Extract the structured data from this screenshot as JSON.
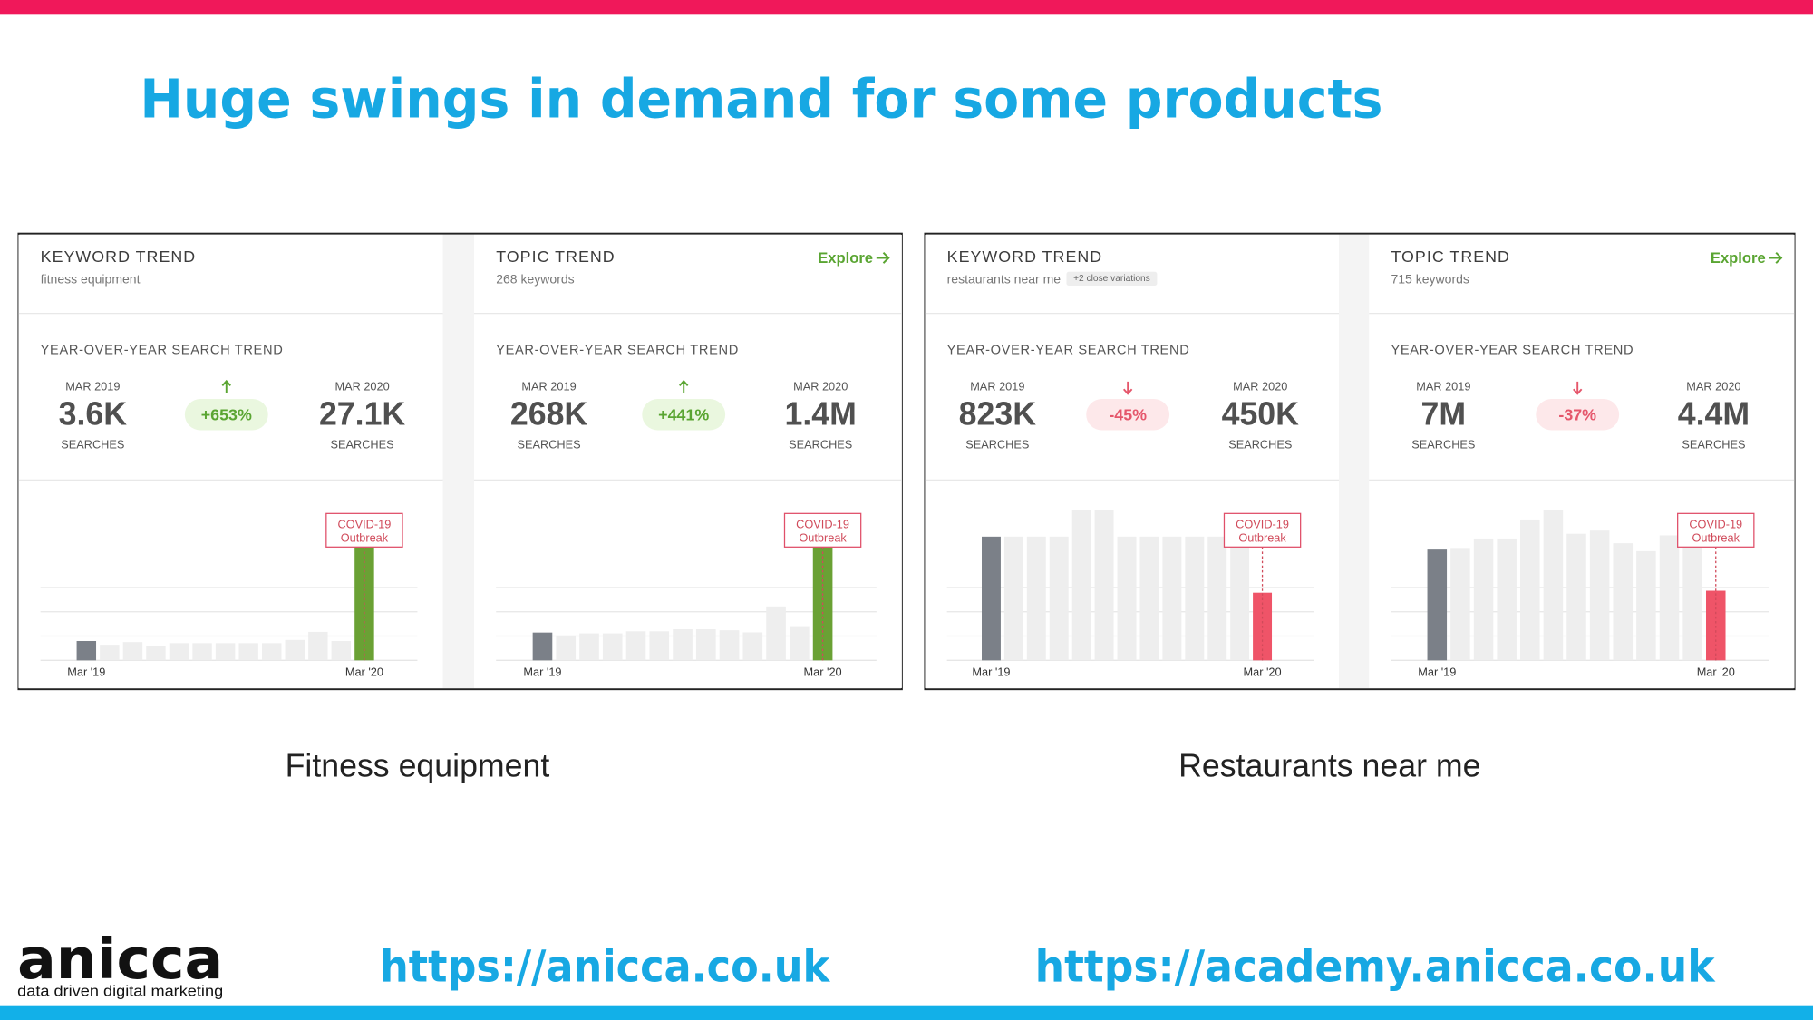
{
  "title": "Huge swings in demand for some products",
  "chart_data": [
    {
      "type": "bar",
      "title": "KEYWORD TREND",
      "subtitle": "fitness equipment",
      "section": "YEAR-OVER-YEAR SEARCH TREND",
      "start": {
        "period": "MAR 2019",
        "value": "3.6K",
        "unit": "SEARCHES"
      },
      "change": "+653%",
      "trend": "up",
      "end": {
        "period": "MAR 2020",
        "value": "27.1K",
        "unit": "SEARCHES"
      },
      "categories": [
        "Mar '19",
        null,
        null,
        null,
        null,
        null,
        null,
        null,
        null,
        null,
        null,
        null,
        "Mar '20"
      ],
      "values": [
        3600,
        2900,
        3400,
        2700,
        3200,
        3200,
        3200,
        3200,
        3200,
        3800,
        5300,
        3600,
        27100
      ],
      "ylim": [
        0,
        28000
      ],
      "annotation": [
        "COVID-19",
        "Outbreak"
      ],
      "colors": {
        "start": "#7b8088",
        "middle": "#eeeeee",
        "end": "#6aa134"
      }
    },
    {
      "type": "bar",
      "title": "TOPIC TREND",
      "subtitle": "268 keywords",
      "link": "Explore",
      "section": "YEAR-OVER-YEAR SEARCH TREND",
      "start": {
        "period": "MAR 2019",
        "value": "268K",
        "unit": "SEARCHES"
      },
      "change": "+441%",
      "trend": "up",
      "end": {
        "period": "MAR 2020",
        "value": "1.4M",
        "unit": "SEARCHES"
      },
      "categories": [
        "Mar '19",
        null,
        null,
        null,
        null,
        null,
        null,
        null,
        null,
        null,
        null,
        null,
        "Mar '20"
      ],
      "values": [
        268000,
        240000,
        260000,
        260000,
        280000,
        280000,
        300000,
        300000,
        290000,
        270000,
        520000,
        330000,
        1400000
      ],
      "ylim": [
        0,
        1450000
      ],
      "annotation": [
        "COVID-19",
        "Outbreak"
      ],
      "colors": {
        "start": "#7b8088",
        "middle": "#eeeeee",
        "end": "#6aa134"
      }
    },
    {
      "type": "bar",
      "title": "KEYWORD TREND",
      "subtitle": "restaurants near me",
      "badge": "+2 close variations",
      "section": "YEAR-OVER-YEAR SEARCH TREND",
      "start": {
        "period": "MAR 2019",
        "value": "823K",
        "unit": "SEARCHES"
      },
      "change": "-45%",
      "trend": "down",
      "end": {
        "period": "MAR 2020",
        "value": "450K",
        "unit": "SEARCHES"
      },
      "categories": [
        "Mar '19",
        null,
        null,
        null,
        null,
        null,
        null,
        null,
        null,
        null,
        null,
        null,
        "Mar '20"
      ],
      "values": [
        823000,
        823000,
        823000,
        823000,
        1000000,
        1000000,
        823000,
        823000,
        823000,
        823000,
        823000,
        823000,
        450000
      ],
      "ylim": [
        0,
        1000000
      ],
      "annotation": [
        "COVID-19",
        "Outbreak"
      ],
      "colors": {
        "start": "#7b8088",
        "middle": "#eeeeee",
        "end": "#ef5468"
      }
    },
    {
      "type": "bar",
      "title": "TOPIC TREND",
      "subtitle": "715 keywords",
      "link": "Explore",
      "section": "YEAR-OVER-YEAR SEARCH TREND",
      "start": {
        "period": "MAR 2019",
        "value": "7M",
        "unit": "SEARCHES"
      },
      "change": "-37%",
      "trend": "down",
      "end": {
        "period": "MAR 2020",
        "value": "4.4M",
        "unit": "SEARCHES"
      },
      "categories": [
        "Mar '19",
        null,
        null,
        null,
        null,
        null,
        null,
        null,
        null,
        null,
        null,
        null,
        "Mar '20"
      ],
      "values": [
        7000000,
        7100000,
        7700000,
        7700000,
        8900000,
        9500000,
        8000000,
        8200000,
        7400000,
        6900000,
        7900000,
        7900000,
        4400000
      ],
      "ylim": [
        0,
        9500000
      ],
      "annotation": [
        "COVID-19",
        "Outbreak"
      ],
      "colors": {
        "start": "#7b8088",
        "middle": "#eeeeee",
        "end": "#ef5468"
      }
    }
  ],
  "captions": [
    "Fitness equipment",
    "Restaurants near me"
  ],
  "footer": {
    "logo": "anicca",
    "tagline": "data driven digital marketing",
    "links": [
      "https://anicca.co.uk",
      "https://academy.anicca.co.uk"
    ]
  }
}
